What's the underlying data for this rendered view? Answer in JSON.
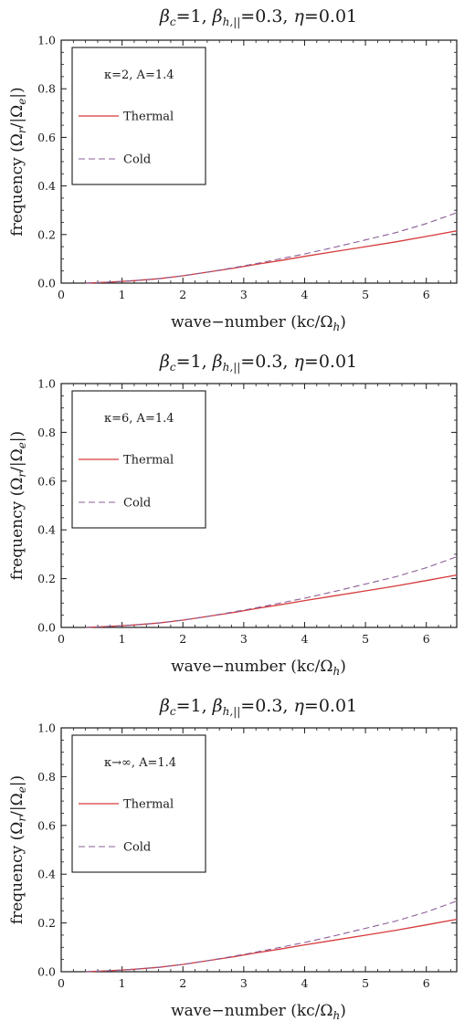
{
  "colors": {
    "thermal": "#d63a3a",
    "cold": "#8a5c96",
    "axes": "#1a1a1a",
    "background": "#ffffff"
  },
  "chart_data": [
    {
      "type": "line",
      "title": {
        "beta_c": "β",
        "c_sub": "c",
        "c_val": "=1, ",
        "beta_h": "β",
        "h_sub": "h,||",
        "h_val": "=0.3, ",
        "eta": "η=0.01"
      },
      "xlabel": {
        "text": "wave−number (kc/Ω",
        "sub": "h",
        "close": ")"
      },
      "ylabel": {
        "text": "frequency (Ω",
        "sub_r": "r",
        "mid": "/|Ω",
        "sub_e": "e",
        "close": "|)"
      },
      "xlim": [
        0,
        6.5
      ],
      "ylim": [
        0,
        1.0
      ],
      "x_ticks": [
        "0",
        "1",
        "2",
        "3",
        "4",
        "5",
        "6"
      ],
      "y_ticks": [
        "0.0",
        "0.2",
        "0.4",
        "0.6",
        "0.8",
        "1.0"
      ],
      "legend": {
        "position": "top-left",
        "header": "κ=2, A=1.4"
      },
      "series": [
        {
          "name": "Thermal",
          "style": "solid",
          "x": [
            0.4,
            0.8,
            1.2,
            1.6,
            2.0,
            2.4,
            2.8,
            3.2,
            3.6,
            4.0,
            4.5,
            5.0,
            5.5,
            6.0,
            6.5
          ],
          "y": [
            0.0,
            0.004,
            0.01,
            0.018,
            0.03,
            0.045,
            0.06,
            0.077,
            0.093,
            0.11,
            0.13,
            0.15,
            0.17,
            0.192,
            0.215
          ]
        },
        {
          "name": "Cold",
          "style": "dashed",
          "x": [
            0.4,
            0.8,
            1.2,
            1.6,
            2.0,
            2.4,
            2.8,
            3.2,
            3.6,
            4.0,
            4.5,
            5.0,
            5.5,
            6.0,
            6.5
          ],
          "y": [
            0.0,
            0.004,
            0.01,
            0.018,
            0.03,
            0.045,
            0.062,
            0.08,
            0.1,
            0.12,
            0.148,
            0.178,
            0.208,
            0.245,
            0.29
          ]
        }
      ]
    },
    {
      "type": "line",
      "title": {
        "beta_c": "β",
        "c_sub": "c",
        "c_val": "=1, ",
        "beta_h": "β",
        "h_sub": "h,||",
        "h_val": "=0.3, ",
        "eta": "η=0.01"
      },
      "xlabel": {
        "text": "wave−number (kc/Ω",
        "sub": "h",
        "close": ")"
      },
      "ylabel": {
        "text": "frequency (Ω",
        "sub_r": "r",
        "mid": "/|Ω",
        "sub_e": "e",
        "close": "|)"
      },
      "xlim": [
        0,
        6.5
      ],
      "ylim": [
        0,
        1.0
      ],
      "x_ticks": [
        "0",
        "1",
        "2",
        "3",
        "4",
        "5",
        "6"
      ],
      "y_ticks": [
        "0.0",
        "0.2",
        "0.4",
        "0.6",
        "0.8",
        "1.0"
      ],
      "legend": {
        "position": "top-left",
        "header": "κ=6, A=1.4"
      },
      "series": [
        {
          "name": "Thermal",
          "style": "solid",
          "x": [
            0.4,
            0.8,
            1.2,
            1.6,
            2.0,
            2.4,
            2.8,
            3.2,
            3.6,
            4.0,
            4.5,
            5.0,
            5.5,
            6.0,
            6.5
          ],
          "y": [
            0.0,
            0.004,
            0.01,
            0.018,
            0.03,
            0.045,
            0.06,
            0.077,
            0.093,
            0.11,
            0.13,
            0.15,
            0.17,
            0.192,
            0.215
          ]
        },
        {
          "name": "Cold",
          "style": "dashed",
          "x": [
            0.4,
            0.8,
            1.2,
            1.6,
            2.0,
            2.4,
            2.8,
            3.2,
            3.6,
            4.0,
            4.5,
            5.0,
            5.5,
            6.0,
            6.5
          ],
          "y": [
            0.0,
            0.004,
            0.01,
            0.018,
            0.03,
            0.045,
            0.062,
            0.08,
            0.1,
            0.12,
            0.148,
            0.178,
            0.208,
            0.245,
            0.29
          ]
        }
      ]
    },
    {
      "type": "line",
      "title": {
        "beta_c": "β",
        "c_sub": "c",
        "c_val": "=1, ",
        "beta_h": "β",
        "h_sub": "h,||",
        "h_val": "=0.3, ",
        "eta": "η=0.01"
      },
      "xlabel": {
        "text": "wave−number (kc/Ω",
        "sub": "h",
        "close": ")"
      },
      "ylabel": {
        "text": "frequency (Ω",
        "sub_r": "r",
        "mid": "/|Ω",
        "sub_e": "e",
        "close": "|)"
      },
      "xlim": [
        0,
        6.5
      ],
      "ylim": [
        0,
        1.0
      ],
      "x_ticks": [
        "0",
        "1",
        "2",
        "3",
        "4",
        "5",
        "6"
      ],
      "y_ticks": [
        "0.0",
        "0.2",
        "0.4",
        "0.6",
        "0.8",
        "1.0"
      ],
      "legend": {
        "position": "top-left",
        "header": "κ→∞, A=1.4"
      },
      "series": [
        {
          "name": "Thermal",
          "style": "solid",
          "x": [
            0.4,
            0.8,
            1.2,
            1.6,
            2.0,
            2.4,
            2.8,
            3.2,
            3.6,
            4.0,
            4.5,
            5.0,
            5.5,
            6.0,
            6.5
          ],
          "y": [
            0.0,
            0.004,
            0.01,
            0.018,
            0.03,
            0.045,
            0.06,
            0.077,
            0.093,
            0.11,
            0.13,
            0.15,
            0.17,
            0.192,
            0.215
          ]
        },
        {
          "name": "Cold",
          "style": "dashed",
          "x": [
            0.4,
            0.8,
            1.2,
            1.6,
            2.0,
            2.4,
            2.8,
            3.2,
            3.6,
            4.0,
            4.5,
            5.0,
            5.5,
            6.0,
            6.5
          ],
          "y": [
            0.0,
            0.004,
            0.01,
            0.018,
            0.03,
            0.045,
            0.062,
            0.08,
            0.1,
            0.12,
            0.148,
            0.178,
            0.208,
            0.245,
            0.29
          ]
        }
      ]
    }
  ]
}
